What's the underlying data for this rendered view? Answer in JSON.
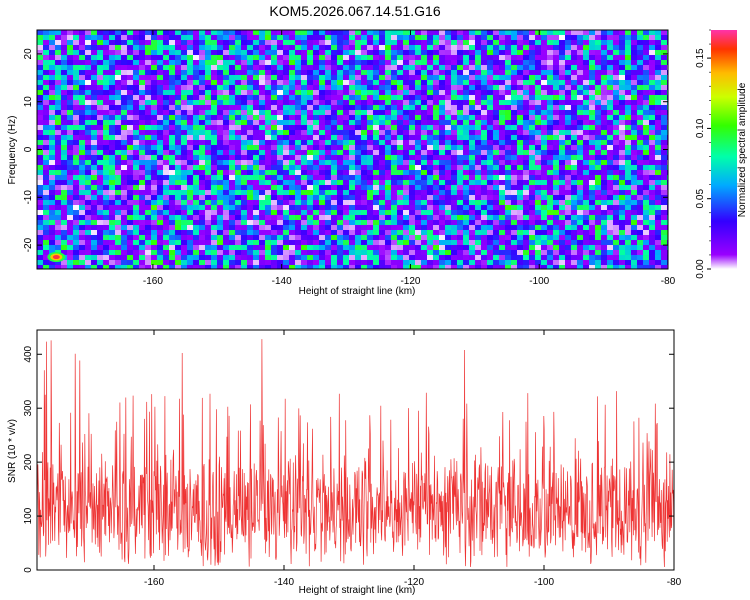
{
  "title": "KOM5.2026.067.14.51.G16",
  "colors": {
    "line": "#ee3333",
    "background": "#ffffff",
    "axis": "#000000"
  },
  "chart_data": [
    {
      "type": "heatmap",
      "title": "KOM5.2026.067.14.51.G16",
      "xlabel": "Height of straight line (km)",
      "ylabel": "Frequency (Hz)",
      "xlim": [
        -178,
        -80
      ],
      "ylim": [
        -25,
        25
      ],
      "xticks": [
        -160,
        -140,
        -120,
        -100,
        -80
      ],
      "yticks": [
        -20,
        -10,
        0,
        10,
        20
      ],
      "colorbar": {
        "label": "Normalized spectral amplitude",
        "range": [
          0,
          0.17
        ],
        "ticks": [
          "0.00",
          "0.05",
          "0.10",
          "0.15"
        ],
        "colormap": "rainbow"
      },
      "peak": {
        "x": -175,
        "y": -22.5,
        "value": 0.17
      }
    },
    {
      "type": "line",
      "xlabel": "Height of straight line (km)",
      "ylabel": "SNR (10 * v/v)",
      "xlim": [
        -178,
        -80
      ],
      "ylim": [
        0,
        445
      ],
      "xticks": [
        -160,
        -140,
        -120,
        -100,
        -80
      ],
      "yticks": [
        0,
        100,
        200,
        300,
        400
      ],
      "series": [
        {
          "name": "SNR",
          "color": "#ee3333",
          "mean": 115,
          "typical_max": 300,
          "max": 445
        }
      ]
    }
  ]
}
